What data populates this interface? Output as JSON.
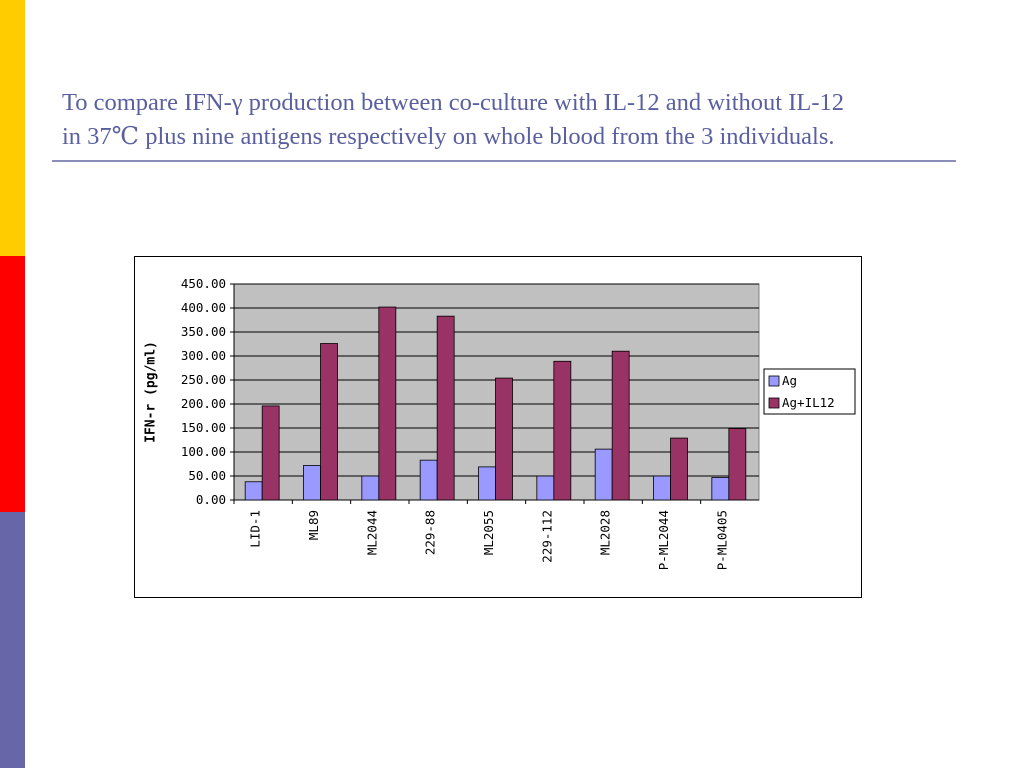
{
  "slide": {
    "title_line1": "To compare IFN-γ production between co-culture with IL-12 and without IL-12",
    "title_line2": "in 37℃ plus nine antigens respectively on whole blood from the 3 individuals.",
    "accent_colors": [
      "#ffcc00",
      "#ff0000",
      "#6666a8"
    ],
    "title_color": "#5a5fa0"
  },
  "chart_data": {
    "type": "bar",
    "title": "",
    "xlabel": "",
    "ylabel": "IFN-r (pg/ml)",
    "ylim": [
      0,
      450
    ],
    "yticks": [
      "0.00",
      "50.00",
      "100.00",
      "150.00",
      "200.00",
      "250.00",
      "300.00",
      "350.00",
      "400.00",
      "450.00"
    ],
    "grid": true,
    "legend_position": "right",
    "plot_background": "#c0c0c0",
    "categories": [
      "LID-1",
      "ML89",
      "ML2044",
      "229-88",
      "ML2055",
      "229-112",
      "ML2028",
      "P-ML2044",
      "P-ML0405"
    ],
    "series": [
      {
        "name": "Ag",
        "color": "#9999ff",
        "values": [
          38,
          72,
          50,
          83,
          69,
          50,
          106,
          50,
          47
        ]
      },
      {
        "name": "Ag+IL12",
        "color": "#993366",
        "values": [
          196,
          326,
          402,
          383,
          254,
          289,
          310,
          129,
          149
        ]
      }
    ]
  }
}
